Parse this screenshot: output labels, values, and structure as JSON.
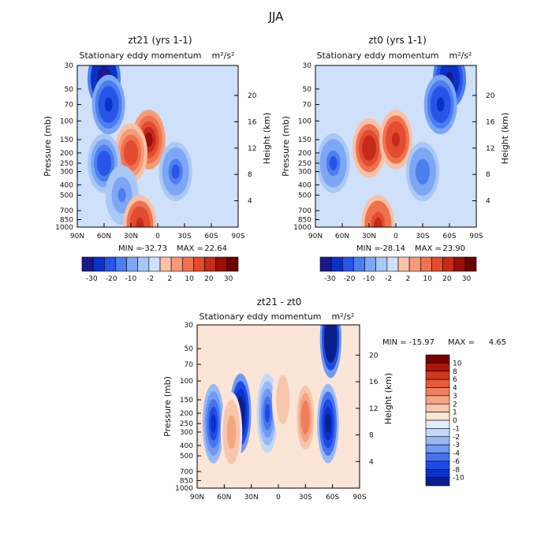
{
  "figure_title": "JJA",
  "colors": {
    "neg": [
      "#1a1a8c",
      "#0a32c8",
      "#2855e6",
      "#4c7ef0",
      "#7da6f4",
      "#a9c8f5",
      "#cfe0fa"
    ],
    "pos": [
      "#fbe1d2",
      "#f9c1a6",
      "#f59b78",
      "#ef7250",
      "#e34c2e",
      "#c62b19",
      "#961008",
      "#6b0000"
    ],
    "anom_neg": [
      "#0a1f8c",
      "#0a32c8",
      "#1e4be6",
      "#4773ef",
      "#7099f2",
      "#98b9f4",
      "#c3d8f8",
      "#e2ecfb"
    ],
    "anom_pos": [
      "#fbe5d6",
      "#f7c6ab",
      "#f4a584",
      "#ef7f5c",
      "#e65a3b",
      "#cc3a22",
      "#a8160e",
      "#7a0000"
    ]
  },
  "chart_data": [
    {
      "id": "zt21",
      "type": "contour",
      "title": "zt21  (yrs 1-1)",
      "subtitle": "Stationary eddy momentum",
      "units": "m²/s²",
      "ylabel": "Pressure (mb)",
      "ylabel_right": "Height (km)",
      "x_ticks": [
        "90N",
        "60N",
        "30N",
        "0",
        "30S",
        "60S",
        "90S"
      ],
      "y_ticks": [
        "30",
        "50",
        "70",
        "100",
        "150",
        "200",
        "250",
        "300",
        "400",
        "500",
        "700",
        "850",
        "1000"
      ],
      "right_ticks": [
        "4",
        "8",
        "12",
        "16",
        "20"
      ],
      "xlim": [
        90,
        -90
      ],
      "ylim": [
        1000,
        30
      ],
      "min_label": "MIN =",
      "min_value": "-32.73",
      "max_label": "MAX =",
      "max_value": "22.64",
      "colorbar_labels": [
        "-30",
        "-20",
        "-10",
        "-2",
        "2",
        "10",
        "20",
        "30"
      ],
      "features": [
        {
          "lat": 60,
          "p": 40,
          "value": -28
        },
        {
          "lat": 55,
          "p": 70,
          "value": -12
        },
        {
          "lat": 10,
          "p": 150,
          "value": 22
        },
        {
          "lat": 30,
          "p": 200,
          "value": 14
        },
        {
          "lat": 60,
          "p": 250,
          "value": -8
        },
        {
          "lat": -20,
          "p": 300,
          "value": -6
        },
        {
          "lat": 40,
          "p": 500,
          "value": -4
        },
        {
          "lat": 20,
          "p": 950,
          "value": 18
        }
      ]
    },
    {
      "id": "zt0",
      "type": "contour",
      "title": "zt0  (yrs 1-1)",
      "subtitle": "Stationary eddy momentum",
      "units": "m²/s²",
      "ylabel": "Pressure (mb)",
      "ylabel_right": "Height (km)",
      "x_ticks": [
        "90N",
        "60N",
        "30N",
        "0",
        "30S",
        "60S",
        "90S"
      ],
      "y_ticks": [
        "30",
        "50",
        "70",
        "100",
        "150",
        "200",
        "250",
        "300",
        "400",
        "500",
        "700",
        "850",
        "1000"
      ],
      "right_ticks": [
        "4",
        "8",
        "12",
        "16",
        "20"
      ],
      "xlim": [
        90,
        -90
      ],
      "ylim": [
        1000,
        30
      ],
      "min_label": "MIN =",
      "min_value": "-28.14",
      "max_label": "MAX =",
      "max_value": "23.90",
      "colorbar_labels": [
        "-30",
        "-20",
        "-10",
        "-2",
        "2",
        "10",
        "20",
        "30"
      ],
      "features": [
        {
          "lat": -60,
          "p": 40,
          "value": -24
        },
        {
          "lat": -50,
          "p": 70,
          "value": -10
        },
        {
          "lat": 30,
          "p": 180,
          "value": 20
        },
        {
          "lat": 0,
          "p": 150,
          "value": 18
        },
        {
          "lat": 70,
          "p": 250,
          "value": -6
        },
        {
          "lat": -30,
          "p": 300,
          "value": -5
        },
        {
          "lat": 20,
          "p": 950,
          "value": 16
        }
      ]
    },
    {
      "id": "diff",
      "type": "contour",
      "title": "zt21 - zt0",
      "subtitle": "Stationary eddy momentum",
      "units": "m²/s²",
      "ylabel": "Pressure (mb)",
      "ylabel_right": "Height (km)",
      "x_ticks": [
        "90N",
        "60N",
        "30N",
        "0",
        "30S",
        "60S",
        "90S"
      ],
      "y_ticks": [
        "30",
        "50",
        "70",
        "100",
        "150",
        "200",
        "250",
        "300",
        "400",
        "500",
        "700",
        "850",
        "1000"
      ],
      "right_ticks": [
        "4",
        "8",
        "12",
        "16",
        "20"
      ],
      "xlim": [
        90,
        -90
      ],
      "ylim": [
        1000,
        30
      ],
      "min_label": "MIN = -15.97",
      "max_label": "MAX =",
      "max_value": "4.65",
      "colorbar_labels": [
        "10",
        "8",
        "6",
        "4",
        "3",
        "2",
        "1",
        "0",
        "-1",
        "-2",
        "-3",
        "-4",
        "-6",
        "-8",
        "-10"
      ],
      "features": [
        {
          "lat": 42,
          "p": 200,
          "value": -12
        },
        {
          "lat": 72,
          "p": 250,
          "value": -6
        },
        {
          "lat": -58,
          "p": 40,
          "value": -14
        },
        {
          "lat": -55,
          "p": 250,
          "value": -8
        },
        {
          "lat": 12,
          "p": 200,
          "value": -4
        },
        {
          "lat": -30,
          "p": 220,
          "value": 4
        },
        {
          "lat": 52,
          "p": 300,
          "value": 3
        },
        {
          "lat": -5,
          "p": 150,
          "value": 2
        }
      ]
    }
  ]
}
